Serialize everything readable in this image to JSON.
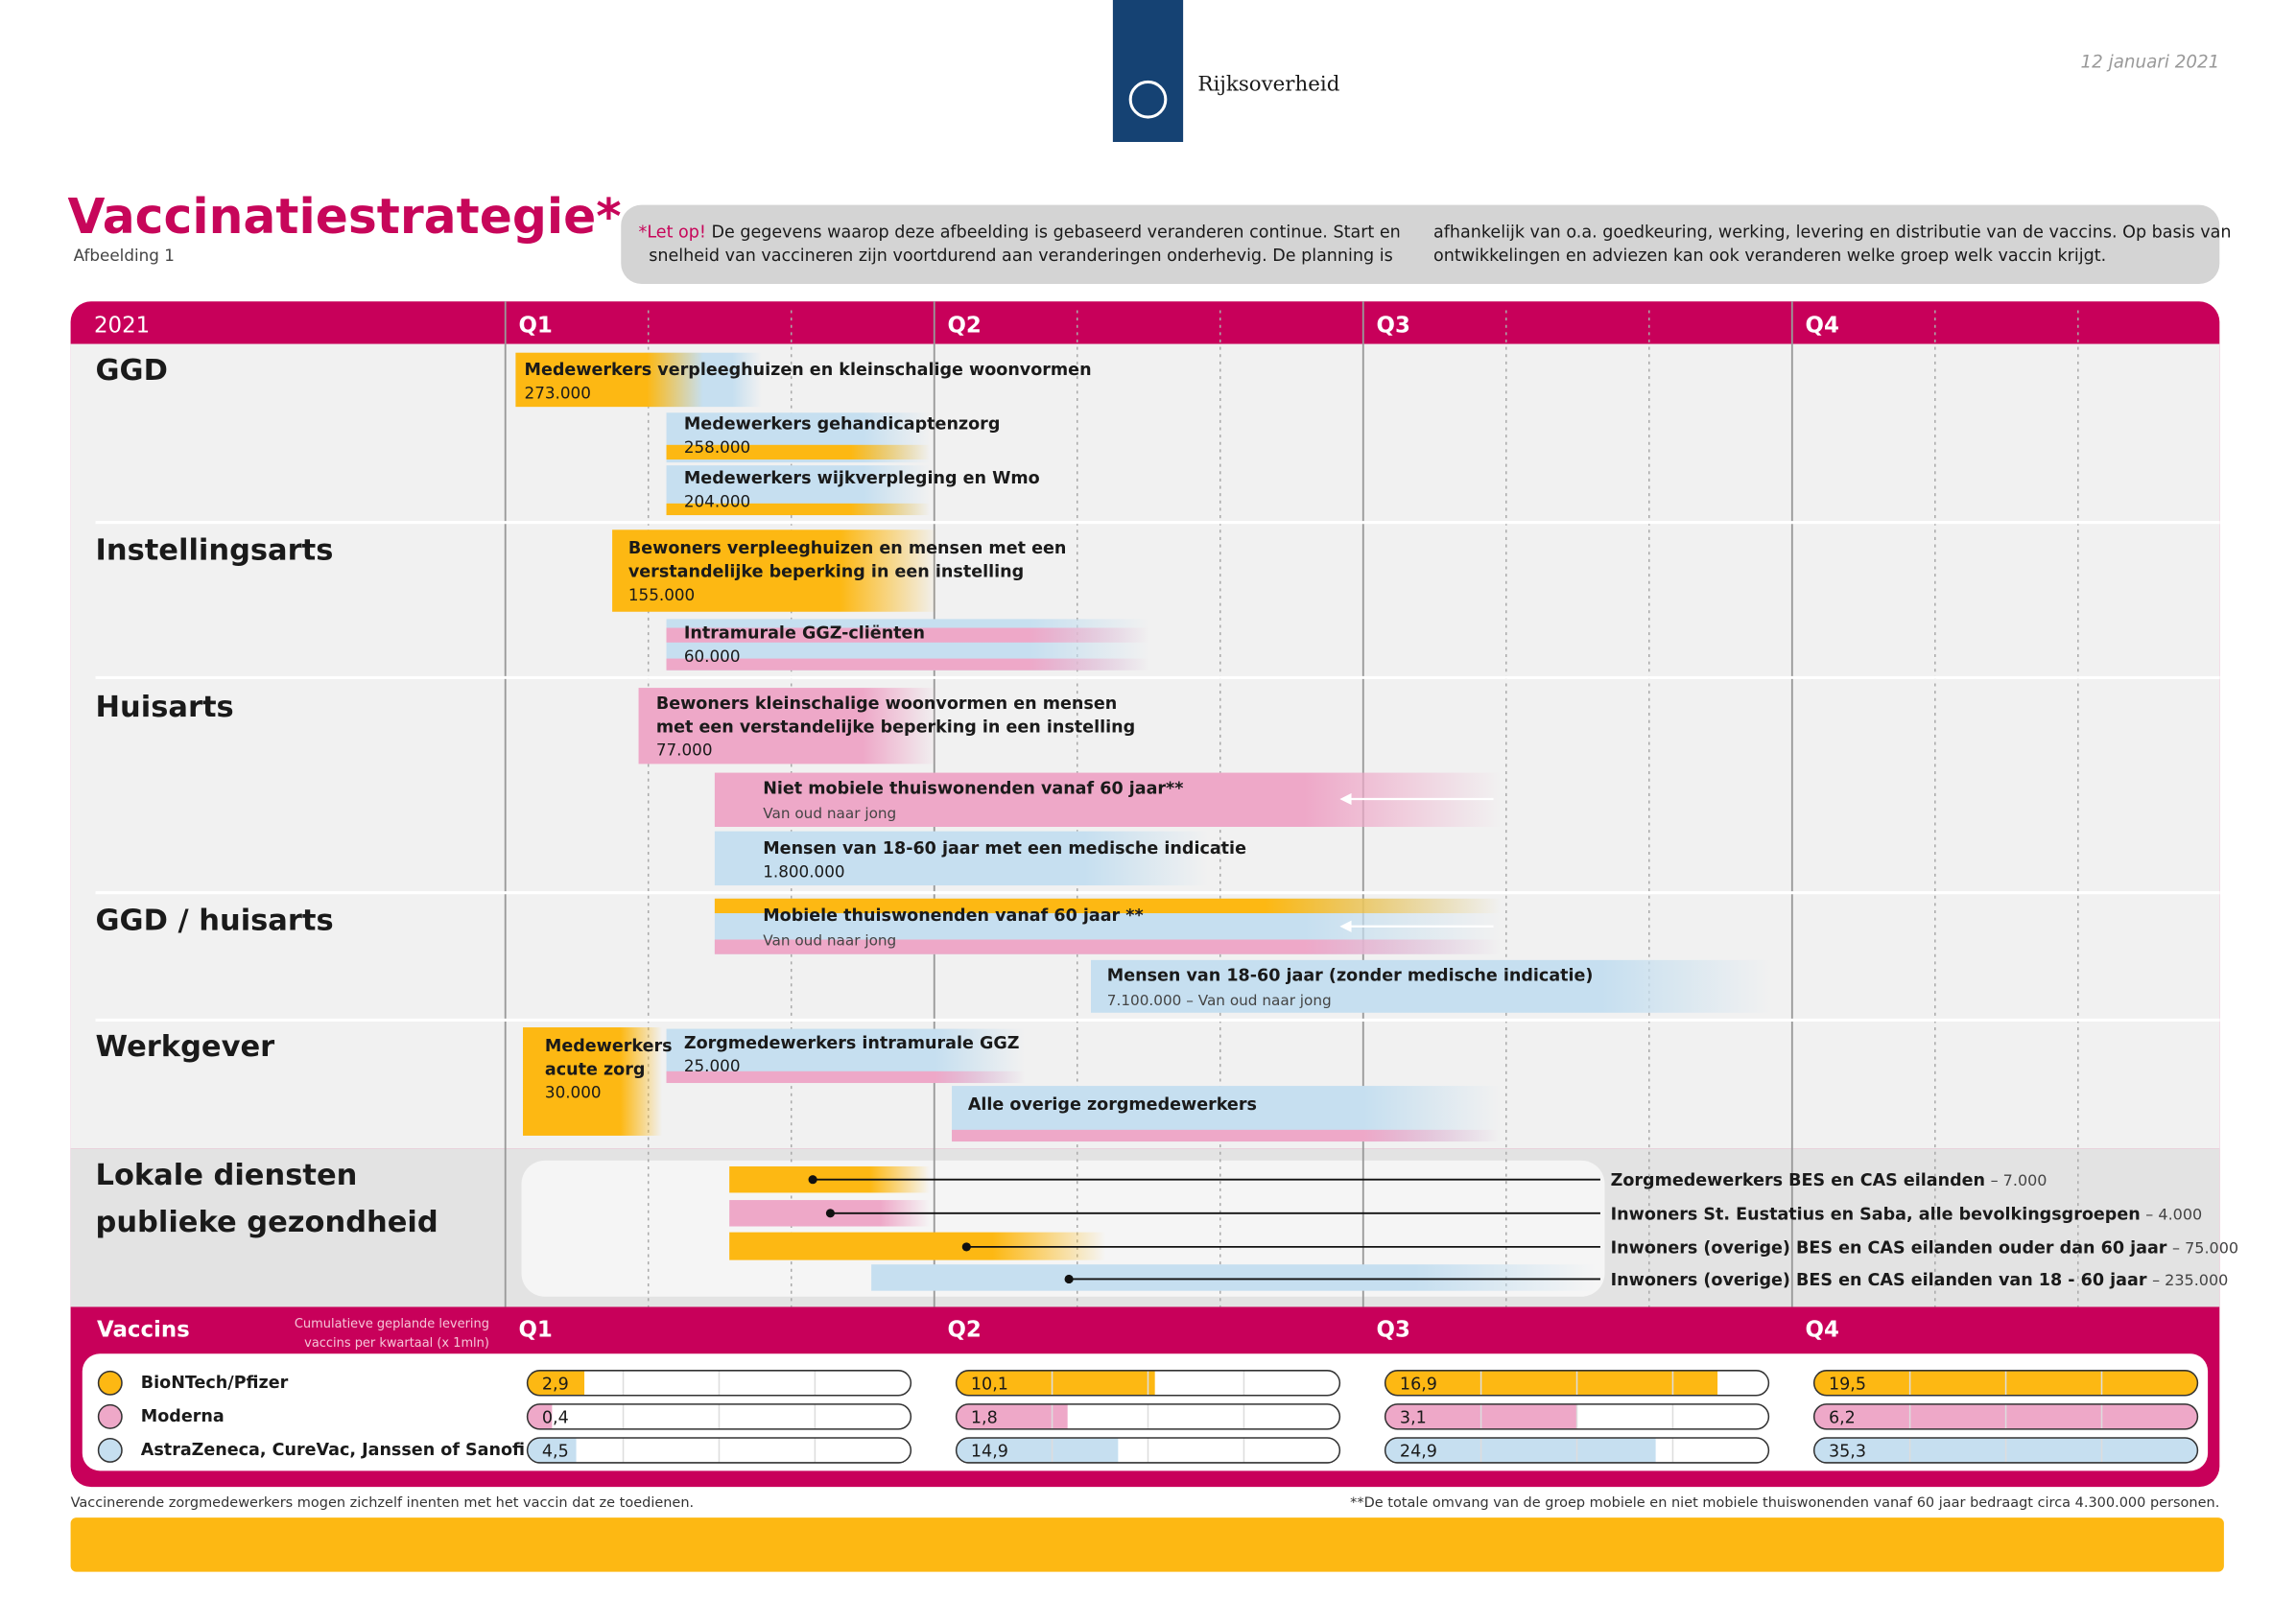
{
  "header": {
    "logo_text": "Rijksoverheid",
    "date": "12 januari 2021"
  },
  "title": "Vaccinatiestrategie",
  "title_mark": "*",
  "subtitle": "Afbeelding 1",
  "notice": {
    "emphasis": "*Let op!",
    "column_1": [
      "De gegevens waarop deze afbeelding is gebaseerd veranderen continue. Start en",
      "snelheid van vaccineren zijn voortdurend aan veranderingen onderhevig. De planning is"
    ],
    "column_2": [
      "afhankelijk van o.a. goedkeuring, werking, levering en distributie van de vaccins. Op basis van",
      "ontwikkelingen en adviezen kan ook veranderen welke groep welk vaccin krijgt."
    ]
  },
  "timeline": {
    "year": "2021",
    "quarters": [
      "Q1",
      "Q2",
      "Q3",
      "Q4"
    ],
    "rows": [
      {
        "label": [
          "GGD"
        ],
        "groups": [
          {
            "lines": [
              "Medewerkers verpleeghuizen en kleinschalige woonvormen"
            ],
            "count": "273.000"
          },
          {
            "lines": [
              "Medewerkers gehandicaptenzorg"
            ],
            "count": "258.000"
          },
          {
            "lines": [
              "Medewerkers wijkverpleging en Wmo"
            ],
            "count": "204.000"
          }
        ]
      },
      {
        "label": [
          "Instellingsarts"
        ],
        "groups": [
          {
            "lines": [
              "Bewoners verpleeghuizen en mensen met een",
              "verstandelijke beperking in een instelling"
            ],
            "count": "155.000"
          },
          {
            "lines": [
              "Intramurale GGZ-cliënten"
            ],
            "count": "60.000"
          }
        ]
      },
      {
        "label": [
          "Huisarts"
        ],
        "groups": [
          {
            "lines": [
              "Bewoners kleinschalige woonvormen en mensen",
              "met een verstandelijke beperking in een instelling"
            ],
            "count": "77.000"
          },
          {
            "lines": [
              "Niet mobiele thuiswonenden vanaf 60 jaar**"
            ],
            "note": "Van oud naar jong"
          },
          {
            "lines": [
              "Mensen van 18-60 jaar met een medische indicatie"
            ],
            "count": "1.800.000"
          }
        ]
      },
      {
        "label": [
          "GGD / huisarts"
        ],
        "groups": [
          {
            "lines": [
              "Mobiele thuiswonenden vanaf 60 jaar **"
            ],
            "note": "Van oud naar jong"
          },
          {
            "lines": [
              "Mensen van 18-60 jaar (zonder medische indicatie)"
            ],
            "note": "7.100.000 – Van oud naar jong"
          }
        ]
      },
      {
        "label": [
          "Werkgever"
        ],
        "groups": [
          {
            "lines": [
              "Medewerkers",
              "acute zorg"
            ],
            "count": "30.000"
          },
          {
            "lines": [
              "Zorgmedewerkers intramurale GGZ"
            ],
            "count": "25.000"
          },
          {
            "lines": [
              "Alle overige zorgmedewerkers"
            ]
          }
        ]
      },
      {
        "label": [
          "Lokale diensten",
          "publieke gezondheid"
        ],
        "groups": []
      }
    ],
    "local": [
      {
        "name": "Zorgmedewerkers BES en CAS eilanden",
        "suffix": "– 7.000"
      },
      {
        "name": "Inwoners St. Eustatius en Saba, alle bevolkingsgroepen",
        "suffix": "– 4.000"
      },
      {
        "name": "Inwoners (overige) BES en CAS eilanden ouder dan 60 jaar",
        "suffix": "– 75.000"
      },
      {
        "name": "Inwoners (overige) BES en CAS eilanden van 18 - 60 jaar",
        "suffix": "– 235.000"
      }
    ]
  },
  "vaccines": {
    "title": "Vaccins",
    "caption": [
      "Cumulatieve geplande levering",
      "vaccins per kwartaal (x 1mln)"
    ],
    "items": [
      {
        "name": "BioNTech/Pfizer",
        "color": "#fdb813",
        "values": [
          2.9,
          10.1,
          16.9,
          19.5
        ],
        "value_labels": [
          "2,9",
          "10,1",
          "16,9",
          "19,5"
        ]
      },
      {
        "name": "Moderna",
        "color": "#eea8c8",
        "values": [
          0.4,
          1.8,
          3.1,
          6.2
        ],
        "value_labels": [
          "0,4",
          "1,8",
          "3,1",
          "6,2"
        ]
      },
      {
        "name": "AstraZeneca, CureVac, Janssen of Sanofi",
        "color": "#c6dff0",
        "values": [
          4.5,
          14.9,
          24.9,
          35.3
        ],
        "value_labels": [
          "4,5",
          "14,9",
          "24,9",
          "35,3"
        ]
      }
    ]
  },
  "footer": {
    "left": "Vaccinerende zorgmedewerkers mogen zichzelf inenten met het vaccin dat ze toedienen.",
    "right": "**De totale omvang van de groep mobiele en niet mobiele thuiswonenden vanaf 60 jaar bedraagt circa 4.300.000 personen."
  }
}
